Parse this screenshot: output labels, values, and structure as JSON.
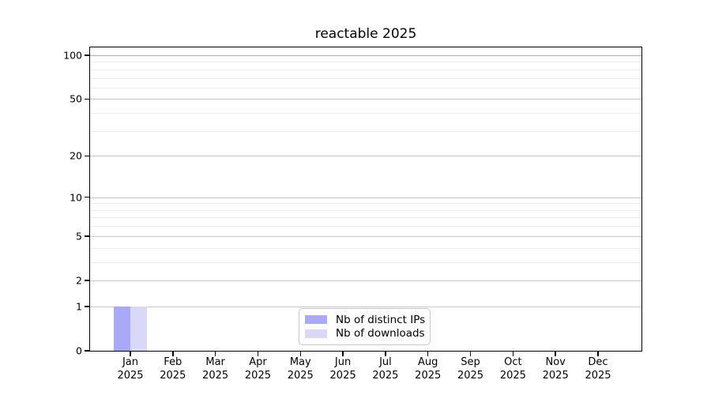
{
  "chart_data": {
    "type": "bar",
    "title": "reactable 2025",
    "categories": [
      "Jan",
      "Feb",
      "Mar",
      "Apr",
      "May",
      "Jun",
      "Jul",
      "Aug",
      "Sep",
      "Oct",
      "Nov",
      "Dec"
    ],
    "category_year": "2025",
    "series": [
      {
        "name": "Nb of distinct IPs",
        "color": "#a9a9f7",
        "values": [
          1,
          0,
          0,
          0,
          0,
          0,
          0,
          0,
          0,
          0,
          0,
          0
        ]
      },
      {
        "name": "Nb of downloads",
        "color": "#d9d9f7",
        "values": [
          1,
          0,
          0,
          0,
          0,
          0,
          0,
          0,
          0,
          0,
          0,
          0
        ]
      }
    ],
    "xlabel": "",
    "ylabel": "",
    "y_axis": {
      "scale": "log10(value+1)",
      "min": 0,
      "max": 100,
      "major_ticks": [
        100,
        50,
        20,
        10,
        5,
        2,
        1,
        0
      ],
      "minor_gridlines": [
        3,
        4,
        6,
        7,
        8,
        9,
        30,
        40,
        60,
        70,
        80,
        90
      ]
    },
    "grid": {
      "major_color": "#c6c6c6",
      "minor_color": "#ededed",
      "top_line_color": "#b0b0b0"
    },
    "legend": {
      "position": "bottom-center-inside",
      "border_color": "#c8c8c8"
    },
    "axis_color": "#000000",
    "background_color": "#ffffff"
  }
}
